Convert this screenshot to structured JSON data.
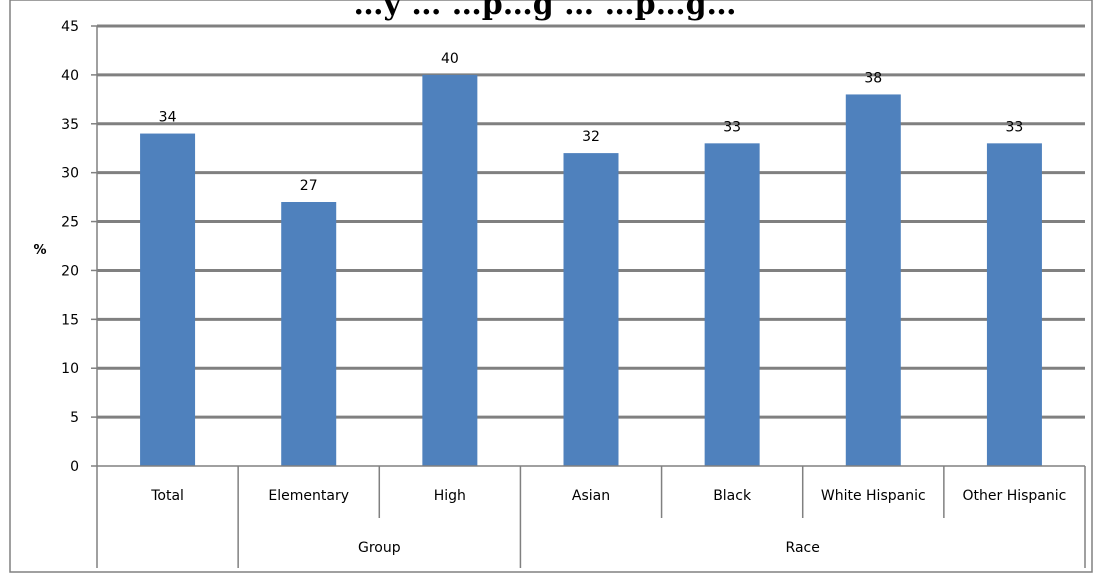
{
  "chart_data": {
    "type": "bar",
    "title": "…y … …p…g … …p…g…",
    "ylabel": "%",
    "xlabel": "",
    "ylim": [
      0,
      45
    ],
    "yticks": [
      0,
      5,
      10,
      15,
      20,
      25,
      30,
      35,
      40,
      45
    ],
    "grid": true,
    "categories": [
      "Total",
      "Elementary",
      "High",
      "Asian",
      "Black",
      "White Hispanic",
      "Other Hispanic"
    ],
    "values": [
      34,
      27,
      40,
      32,
      33,
      38,
      33
    ],
    "value_labels": [
      "34",
      "27",
      "40",
      "32",
      "33",
      "38",
      "33"
    ],
    "groups": [
      {
        "label": "Group",
        "categories": [
          "Elementary",
          "High"
        ]
      },
      {
        "label": "Race",
        "categories": [
          "Asian",
          "Black",
          "White Hispanic",
          "Other Hispanic"
        ]
      }
    ],
    "colors": {
      "bar": "#4F81BD",
      "grid": "#808080",
      "frame": "#808080"
    }
  }
}
